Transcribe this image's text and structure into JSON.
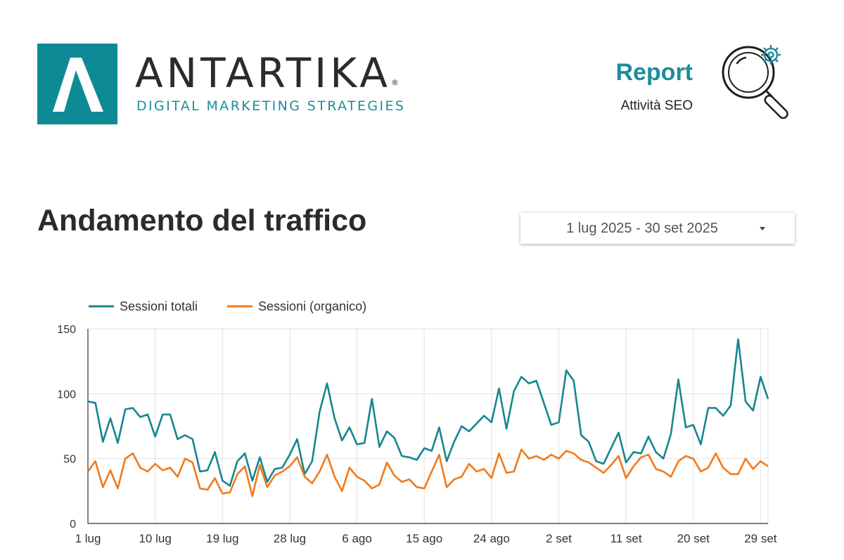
{
  "brand": {
    "name": "ANTARTIKA",
    "registered": "®",
    "tagline": "DIGITAL MARKETING STRATEGIES",
    "color": "#0e8a97"
  },
  "report": {
    "title": "Report",
    "subtitle": "Attività SEO",
    "icon": "magnifier-gear-icon"
  },
  "page": {
    "title": "Andamento del traffico"
  },
  "date_range": {
    "label": "1 lug 2025 - 30 set 2025",
    "icon": "chevron-down-icon"
  },
  "chart_data": {
    "type": "line",
    "title": "",
    "xlabel": "",
    "ylabel": "",
    "ylim": [
      0,
      150
    ],
    "yticks": [
      0,
      50,
      100,
      150
    ],
    "grid": true,
    "legend_position": "top-left",
    "x_tick_labels": [
      "1 lug",
      "10 lug",
      "19 lug",
      "28 lug",
      "6 ago",
      "15 ago",
      "24 ago",
      "2 set",
      "11 set",
      "20 set",
      "29 set"
    ],
    "x_tick_index": [
      0,
      9,
      18,
      27,
      36,
      45,
      54,
      63,
      72,
      81,
      90
    ],
    "x_start": "2025-07-01",
    "x_end": "2025-09-30",
    "series": [
      {
        "name": "Sessioni totali",
        "color": "#16868f",
        "values": [
          94,
          93,
          63,
          81,
          62,
          88,
          89,
          82,
          84,
          67,
          84,
          84,
          65,
          68,
          65,
          40,
          41,
          55,
          33,
          29,
          48,
          54,
          33,
          51,
          32,
          42,
          43,
          53,
          65,
          38,
          48,
          86,
          108,
          81,
          64,
          74,
          61,
          62,
          96,
          59,
          71,
          66,
          52,
          51,
          49,
          58,
          56,
          74,
          48,
          63,
          75,
          71,
          77,
          83,
          78,
          104,
          73,
          102,
          113,
          108,
          110,
          93,
          76,
          78,
          118,
          110,
          68,
          63,
          48,
          46,
          58,
          70,
          47,
          55,
          54,
          67,
          55,
          50,
          69,
          111,
          74,
          76,
          61,
          89,
          89,
          83,
          91,
          142,
          94,
          87,
          113,
          96
        ]
      },
      {
        "name": "Sessioni (organico)",
        "color": "#f07a1c",
        "values": [
          40,
          48,
          28,
          41,
          27,
          50,
          54,
          43,
          40,
          46,
          41,
          43,
          36,
          50,
          47,
          27,
          26,
          35,
          23,
          24,
          38,
          44,
          21,
          45,
          28,
          37,
          40,
          44,
          51,
          36,
          31,
          40,
          53,
          36,
          25,
          43,
          36,
          33,
          27,
          30,
          47,
          37,
          32,
          34,
          28,
          27,
          40,
          53,
          28,
          34,
          36,
          46,
          40,
          42,
          35,
          54,
          39,
          40,
          57,
          50,
          52,
          49,
          53,
          50,
          56,
          54,
          49,
          47,
          43,
          39,
          45,
          52,
          35,
          44,
          51,
          53,
          42,
          40,
          36,
          48,
          52,
          50,
          40,
          43,
          54,
          43,
          38,
          38,
          50,
          42,
          48,
          44
        ]
      }
    ]
  }
}
